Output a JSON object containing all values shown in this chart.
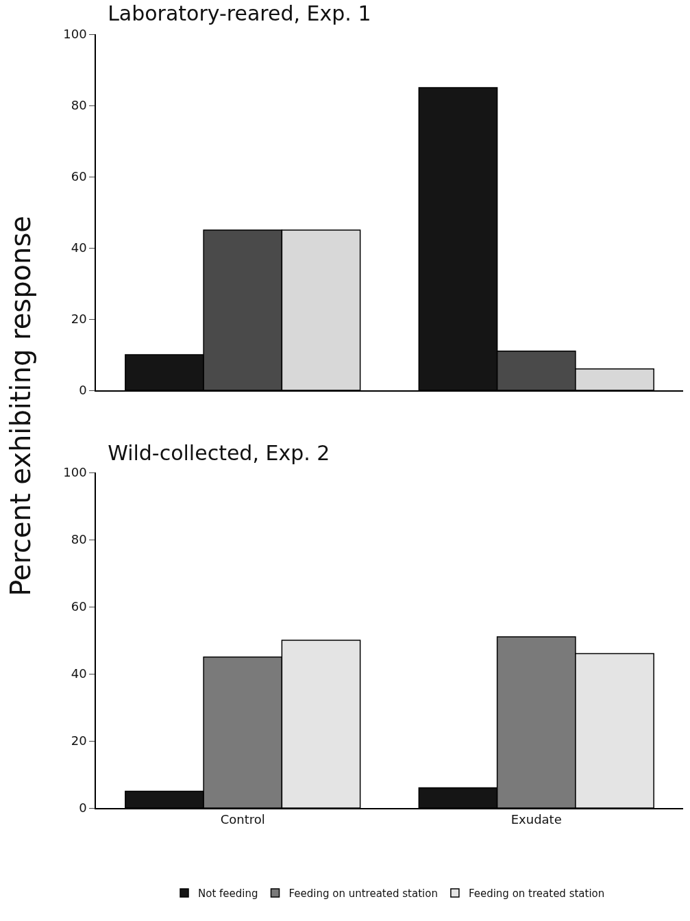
{
  "chart_data": [
    {
      "type": "bar",
      "title": "Laboratory-reared, Exp. 1",
      "ylabel": "Percent exhibiting response",
      "categories": [
        null,
        null
      ],
      "tick_labels": "y",
      "ylim": [
        0,
        100
      ],
      "yticks": [
        0,
        20,
        40,
        60,
        80,
        100
      ],
      "grid": false,
      "legend": false,
      "series": [
        {
          "color": "#151515",
          "values": [
            10,
            85
          ]
        },
        {
          "color": "#4a4a4a",
          "values": [
            45,
            11
          ]
        },
        {
          "color": "#d8d8d8",
          "values": [
            45,
            6
          ]
        }
      ]
    },
    {
      "type": "bar",
      "title": "Wild-collected, Exp. 2",
      "categories": [
        "Control",
        "Exudate"
      ],
      "ylim": [
        0,
        100
      ],
      "yticks": [
        0,
        20,
        40,
        60,
        80,
        100
      ],
      "grid": false,
      "legend": "bottom",
      "series": [
        {
          "name": "Not feeding",
          "color": "#151515",
          "values": [
            5,
            6
          ]
        },
        {
          "name": "Feeding on untreated station",
          "color": "#7a7a7a",
          "values": [
            45,
            51
          ]
        },
        {
          "name": "Feeding on treated station",
          "color": "#e4e4e4",
          "values": [
            50,
            46
          ]
        }
      ]
    }
  ]
}
